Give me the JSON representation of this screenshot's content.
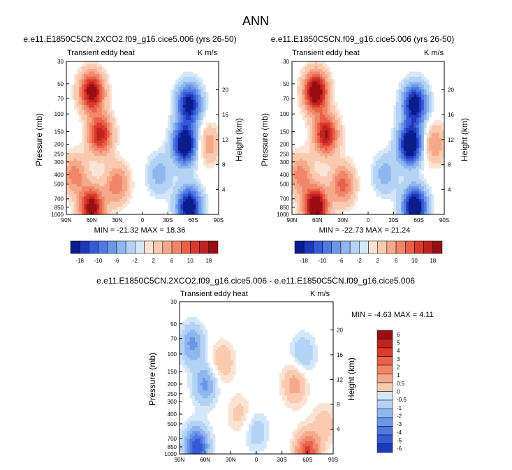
{
  "figure": {
    "title": "ANN",
    "diff_title": "e.e11.E1850C5CN.2XCO2.f09_g16.cice5.006 - e.e11.E1850C5CN.f09_g16.cice5.006"
  },
  "colors": {
    "pos": [
      "#fbe3d4",
      "#f9c9b0",
      "#f6a98a",
      "#f1866a",
      "#ea6049",
      "#d83a2c",
      "#bf2221",
      "#9a0d13"
    ],
    "neg": [
      "#d4e7f9",
      "#b4d2f4",
      "#8fb6ee",
      "#6c96e8",
      "#4f78e2",
      "#355ad8",
      "#2037bb",
      "#0a1d8c"
    ],
    "neutral": "#ffffff"
  },
  "chart_data": [
    {
      "type": "heatmap",
      "title": "e.e11.E1850C5CN.2XCO2.f09_g16.cice5.006 (yrs 26-50)",
      "left_label": "Transient eddy heat",
      "right_label": "K m/s",
      "xlabel": "",
      "ylabel": "Pressure (mb)",
      "ylabel_right": "Height (km)",
      "x_ticks": [
        "90N",
        "60N",
        "30N",
        "0",
        "30S",
        "60S",
        "90S"
      ],
      "y_ticks": [
        "30",
        "50",
        "70",
        "100",
        "150",
        "200",
        "250",
        "300",
        "400",
        "500",
        "700",
        "850",
        "1000"
      ],
      "height_ticks": [
        "20",
        "16",
        "12",
        "8",
        "4"
      ],
      "stats": "MIN = -21.32   MAX = 18.36",
      "ylim": [
        1000,
        30
      ],
      "xlim": [
        90,
        -90
      ],
      "features": [
        {
          "lat": 60,
          "p": 60,
          "v": 18
        },
        {
          "lat": 50,
          "p": 160,
          "v": 15
        },
        {
          "lat": 60,
          "p": 850,
          "v": 18
        },
        {
          "lat": 30,
          "p": 500,
          "v": 9
        },
        {
          "lat": 80,
          "p": 400,
          "v": 8
        },
        {
          "lat": -55,
          "p": 80,
          "v": -18
        },
        {
          "lat": -50,
          "p": 200,
          "v": -21
        },
        {
          "lat": -55,
          "p": 850,
          "v": -20
        },
        {
          "lat": -20,
          "p": 400,
          "v": -6
        },
        {
          "lat": -78,
          "p": 200,
          "v": 6
        }
      ],
      "levels": [
        -18,
        -14,
        -10,
        -8,
        -6,
        -4,
        -2,
        -1,
        1,
        2,
        4,
        6,
        8,
        10,
        14,
        18
      ],
      "colorbar_labels": [
        "-18",
        "-10",
        "-6",
        "-2",
        "2",
        "6",
        "10",
        "18"
      ]
    },
    {
      "type": "heatmap",
      "title": "e.e11.E1850C5CN.f09_g16.cice5.006 (yrs 26-50)",
      "left_label": "Transient eddy heat",
      "right_label": "K m/s",
      "xlabel": "",
      "ylabel": "Pressure (mb)",
      "ylabel_right": "Height (km)",
      "x_ticks": [
        "90N",
        "60N",
        "30N",
        "0",
        "30S",
        "60S",
        "90S"
      ],
      "y_ticks": [
        "30",
        "50",
        "70",
        "100",
        "150",
        "200",
        "250",
        "300",
        "400",
        "500",
        "700",
        "850",
        "1000"
      ],
      "height_ticks": [
        "20",
        "16",
        "12",
        "8",
        "4"
      ],
      "stats": "MIN = -22.73   MAX = 21.24",
      "ylim": [
        1000,
        30
      ],
      "xlim": [
        90,
        -90
      ],
      "features": [
        {
          "lat": 62,
          "p": 60,
          "v": 20
        },
        {
          "lat": 50,
          "p": 160,
          "v": 16
        },
        {
          "lat": 62,
          "p": 850,
          "v": 21
        },
        {
          "lat": 30,
          "p": 500,
          "v": 10
        },
        {
          "lat": 80,
          "p": 400,
          "v": 8
        },
        {
          "lat": -55,
          "p": 80,
          "v": -19
        },
        {
          "lat": -50,
          "p": 200,
          "v": -22
        },
        {
          "lat": -55,
          "p": 850,
          "v": -21
        },
        {
          "lat": -20,
          "p": 400,
          "v": -6
        },
        {
          "lat": -78,
          "p": 200,
          "v": 7
        }
      ],
      "levels": [
        -18,
        -14,
        -10,
        -8,
        -6,
        -4,
        -2,
        -1,
        1,
        2,
        4,
        6,
        8,
        10,
        14,
        18
      ],
      "colorbar_labels": [
        "-18",
        "-10",
        "-6",
        "-2",
        "2",
        "6",
        "10",
        "18"
      ]
    },
    {
      "type": "heatmap",
      "title": "",
      "left_label": "Transient eddy heat",
      "right_label": "K m/s",
      "xlabel": "",
      "ylabel": "Pressure (mb)",
      "ylabel_right": "Height (km)",
      "x_ticks": [
        "90N",
        "60N",
        "30N",
        "0",
        "30S",
        "60S",
        "90S"
      ],
      "y_ticks": [
        "30",
        "50",
        "70",
        "100",
        "150",
        "200",
        "250",
        "300",
        "400",
        "500",
        "700",
        "850",
        "1000"
      ],
      "height_ticks": [
        "20",
        "16",
        "12",
        "8",
        "4"
      ],
      "stats": "MIN =  -4.63   MAX =   4.11",
      "ylim": [
        1000,
        30
      ],
      "xlim": [
        90,
        -90
      ],
      "features": [
        {
          "lat": 75,
          "p": 80,
          "v": -2.5
        },
        {
          "lat": 40,
          "p": 120,
          "v": 1.5
        },
        {
          "lat": 60,
          "p": 200,
          "v": -2.5
        },
        {
          "lat": 70,
          "p": 850,
          "v": -4.5
        },
        {
          "lat": -45,
          "p": 200,
          "v": 2.0
        },
        {
          "lat": -60,
          "p": 950,
          "v": 4.0
        },
        {
          "lat": -55,
          "p": 100,
          "v": -1.5
        },
        {
          "lat": 0,
          "p": 600,
          "v": -1.2
        },
        {
          "lat": -80,
          "p": 500,
          "v": 1.2
        },
        {
          "lat": 20,
          "p": 400,
          "v": 1.0
        }
      ],
      "levels": [
        -6,
        -5,
        -4,
        -3,
        -2,
        -1,
        -0.5,
        0,
        0.5,
        1,
        2,
        3,
        4,
        5,
        6
      ],
      "colorbar_labels": [
        "6",
        "5",
        "4",
        "3",
        "2",
        "1",
        "0.5",
        "0",
        "-0.5",
        "-1",
        "-2",
        "-3",
        "-4",
        "-5",
        "-6"
      ]
    }
  ]
}
